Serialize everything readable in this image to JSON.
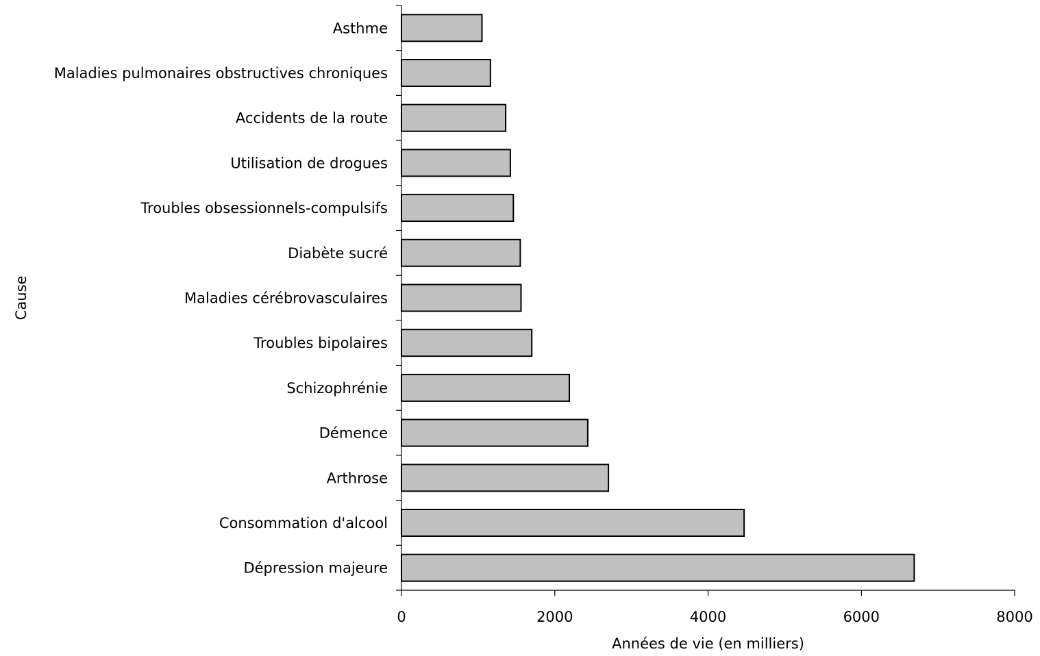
{
  "chart_data": {
    "type": "bar",
    "orientation": "horizontal",
    "title": "",
    "xlabel": "Années de vie (en milliers)",
    "ylabel": "Cause",
    "xlim": [
      0,
      8000
    ],
    "xticks": [
      "0",
      "2000",
      "4000",
      "6000",
      "8000"
    ],
    "grid": false,
    "legend": "none",
    "bar_color": "#c0c0c0",
    "bar_edge_color": "#000000",
    "categories": [
      "Asthme",
      "Maladies pulmonaires obstructives chroniques",
      "Accidents de la route",
      "Utilisation de drogues",
      "Troubles obsessionnels-compulsifs",
      "Diabète sucré",
      "Maladies cérébrovasculaires",
      "Troubles bipolaires",
      "Schizophrénie",
      "Démence",
      "Arthrose",
      "Consommation d'alcool",
      "Dépression majeure"
    ],
    "values": [
      1050,
      1160,
      1360,
      1420,
      1460,
      1550,
      1560,
      1700,
      2190,
      2430,
      2700,
      4470,
      6690
    ]
  }
}
